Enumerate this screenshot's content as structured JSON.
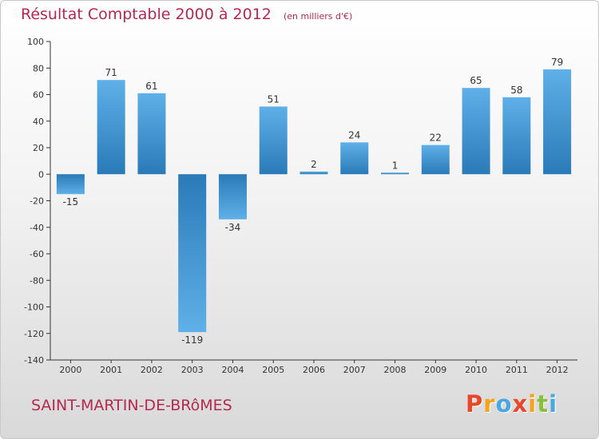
{
  "header": {
    "title": "Résultat Comptable 2000 à 2012",
    "subtitle": "(en milliers d'€)"
  },
  "footer": {
    "commune": "SAINT-MARTIN-DE-BRôMES",
    "logo_letters": [
      "P",
      "r",
      "o",
      "x",
      "i",
      "t",
      "i"
    ],
    "logo_colors": [
      "#e8472a",
      "#f7a21b",
      "#4aa7e0",
      "#e8472a",
      "#f7a21b",
      "#88bf3c",
      "#4aa7e0"
    ]
  },
  "colors": {
    "bar_dark": "#2a7ab8",
    "bar_light": "#5fb0e8",
    "title": "#b5294f",
    "axis": "#333333"
  },
  "chart_data": {
    "type": "bar",
    "categories": [
      "2000",
      "2001",
      "2002",
      "2003",
      "2004",
      "2005",
      "2006",
      "2007",
      "2008",
      "2009",
      "2010",
      "2011",
      "2012"
    ],
    "values": [
      -15,
      71,
      61,
      -119,
      -34,
      51,
      2,
      24,
      1,
      22,
      65,
      58,
      79
    ],
    "ylim": [
      -140,
      100
    ],
    "yticks": [
      100,
      80,
      60,
      40,
      20,
      0,
      -20,
      -40,
      -60,
      -80,
      -100,
      -120,
      -140
    ],
    "grid": false
  }
}
